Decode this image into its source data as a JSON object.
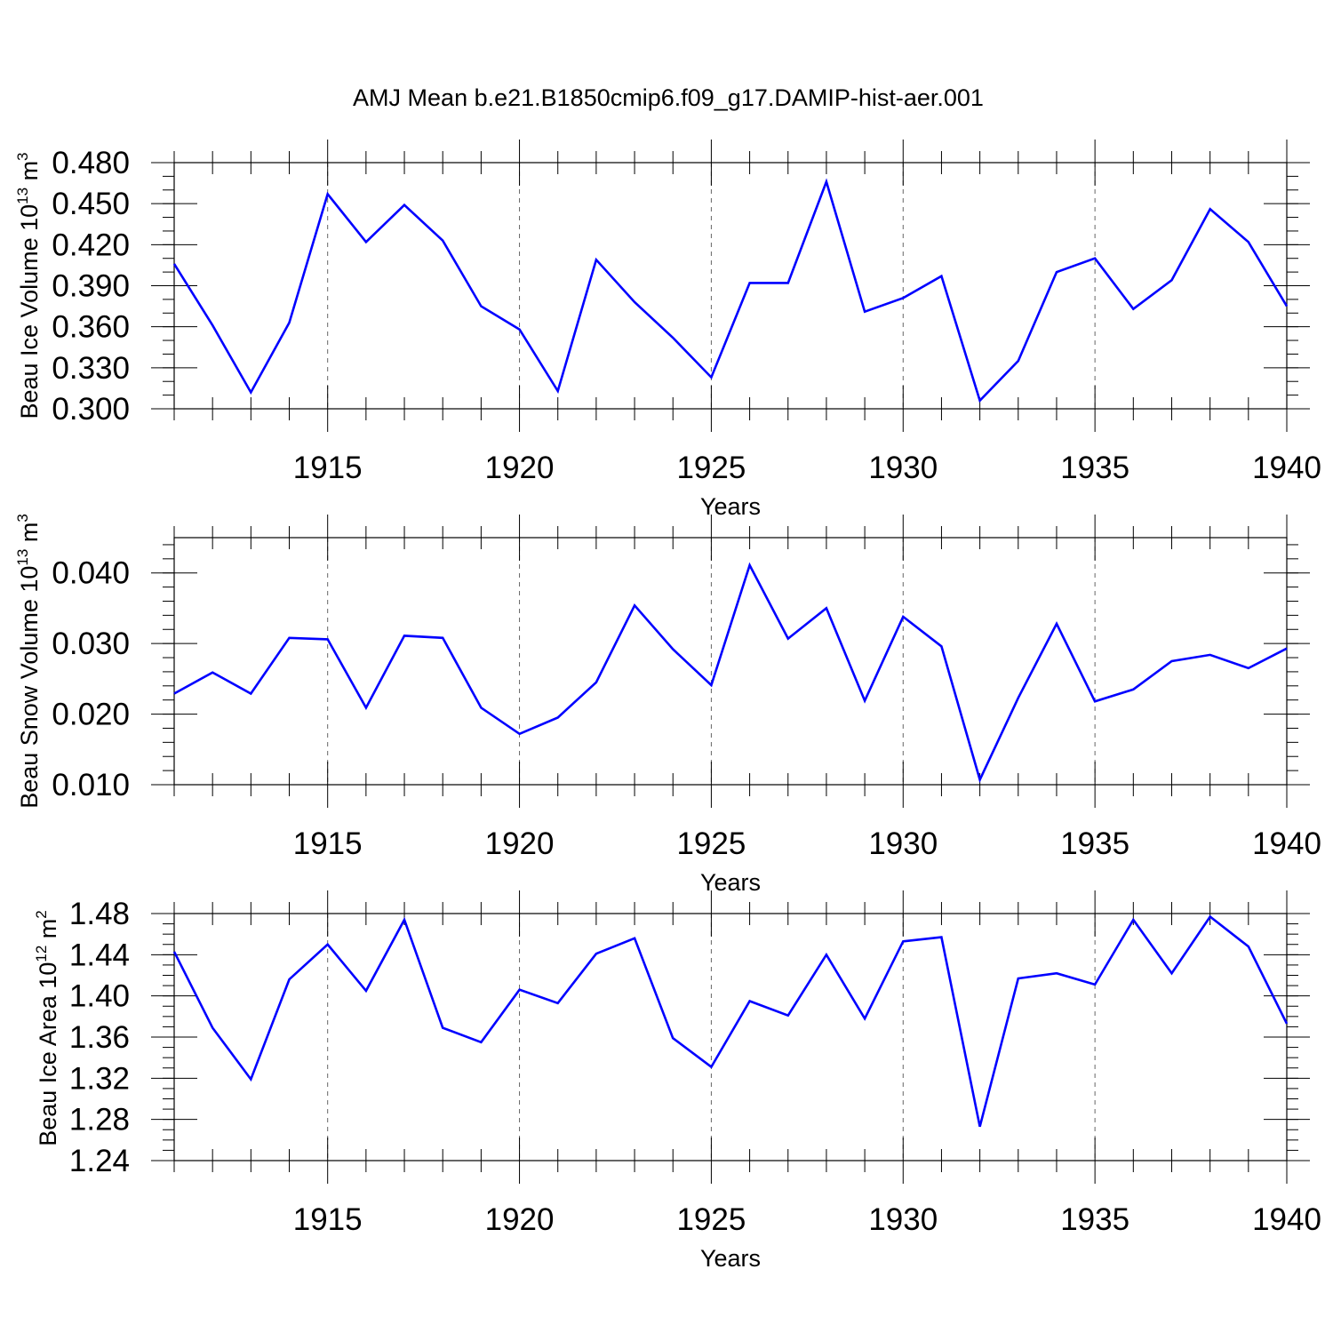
{
  "title": "AMJ Mean b.e21.B1850cmip6.f09_g17.DAMIP-hist-aer.001",
  "chart_data": [
    {
      "type": "line",
      "name": "ice-volume",
      "ylabel": "Beau Ice Volume 10",
      "ylabel_exp": "13",
      "ylabel_unit": " m",
      "ylabel_unit_exp": "3",
      "xlabel": "Years",
      "xlim": [
        1911,
        1940
      ],
      "ylim": [
        0.3,
        0.48
      ],
      "yminor": 0.01,
      "ydecimals": 3,
      "xticks": [
        1915,
        1920,
        1925,
        1930,
        1935,
        1940
      ],
      "yticks": [
        0.3,
        0.33,
        0.36,
        0.39,
        0.42,
        0.45,
        0.48
      ],
      "xtick_labels": [
        "1915",
        "1920",
        "1925",
        "1930",
        "1935",
        "1940"
      ],
      "ytick_labels": [
        "0.300",
        "0.330",
        "0.360",
        "0.390",
        "0.420",
        "0.450",
        "0.480"
      ],
      "color": "#0000ff",
      "x": [
        1911,
        1912,
        1913,
        1914,
        1915,
        1916,
        1917,
        1918,
        1919,
        1920,
        1921,
        1922,
        1923,
        1924,
        1925,
        1926,
        1927,
        1928,
        1929,
        1930,
        1931,
        1932,
        1933,
        1934,
        1935,
        1936,
        1937,
        1938,
        1939,
        1940
      ],
      "values": [
        0.406,
        0.361,
        0.312,
        0.363,
        0.457,
        0.422,
        0.449,
        0.423,
        0.375,
        0.358,
        0.313,
        0.409,
        0.378,
        0.352,
        0.323,
        0.392,
        0.392,
        0.466,
        0.371,
        0.381,
        0.397,
        0.306,
        0.335,
        0.4,
        0.41,
        0.373,
        0.394,
        0.446,
        0.422,
        0.375
      ]
    },
    {
      "type": "line",
      "name": "snow-volume",
      "ylabel": "Beau Snow Volume 10",
      "ylabel_exp": "13",
      "ylabel_unit": " m",
      "ylabel_unit_exp": "3",
      "xlabel": "Years",
      "xlim": [
        1911,
        1940
      ],
      "ylim": [
        0.01,
        0.045
      ],
      "yminor": 0.002,
      "ydecimals": 3,
      "xticks": [
        1915,
        1920,
        1925,
        1930,
        1935,
        1940
      ],
      "yticks": [
        0.01,
        0.02,
        0.03,
        0.04
      ],
      "xtick_labels": [
        "1915",
        "1920",
        "1925",
        "1930",
        "1935",
        "1940"
      ],
      "ytick_labels": [
        "0.010",
        "0.020",
        "0.030",
        "0.040"
      ],
      "color": "#0000ff",
      "x": [
        1911,
        1912,
        1913,
        1914,
        1915,
        1916,
        1917,
        1918,
        1919,
        1920,
        1921,
        1922,
        1923,
        1924,
        1925,
        1926,
        1927,
        1928,
        1929,
        1930,
        1931,
        1932,
        1933,
        1934,
        1935,
        1936,
        1937,
        1938,
        1939,
        1940
      ],
      "values": [
        0.0229,
        0.0259,
        0.0229,
        0.0308,
        0.0306,
        0.0209,
        0.0311,
        0.0308,
        0.0209,
        0.0172,
        0.0195,
        0.0245,
        0.0354,
        0.0292,
        0.0241,
        0.0411,
        0.0307,
        0.035,
        0.0219,
        0.0338,
        0.0296,
        0.0107,
        0.0223,
        0.0328,
        0.0218,
        0.0235,
        0.0275,
        0.0284,
        0.0265,
        0.0293
      ]
    },
    {
      "type": "line",
      "name": "ice-area",
      "ylabel": "Beau Ice Area 10",
      "ylabel_exp": "12",
      "ylabel_unit": " m",
      "ylabel_unit_exp": "2",
      "xlabel": "Years",
      "xlim": [
        1911,
        1940
      ],
      "ylim": [
        1.24,
        1.48
      ],
      "yminor": 0.01,
      "ydecimals": 2,
      "xticks": [
        1915,
        1920,
        1925,
        1930,
        1935,
        1940
      ],
      "yticks": [
        1.24,
        1.28,
        1.32,
        1.36,
        1.4,
        1.44,
        1.48
      ],
      "xtick_labels": [
        "1915",
        "1920",
        "1925",
        "1930",
        "1935",
        "1940"
      ],
      "ytick_labels": [
        "1.24",
        "1.28",
        "1.32",
        "1.36",
        "1.40",
        "1.44",
        "1.48"
      ],
      "color": "#0000ff",
      "x": [
        1911,
        1912,
        1913,
        1914,
        1915,
        1916,
        1917,
        1918,
        1919,
        1920,
        1921,
        1922,
        1923,
        1924,
        1925,
        1926,
        1927,
        1928,
        1929,
        1930,
        1931,
        1932,
        1933,
        1934,
        1935,
        1936,
        1937,
        1938,
        1939,
        1940
      ],
      "values": [
        1.443,
        1.369,
        1.319,
        1.416,
        1.45,
        1.405,
        1.474,
        1.369,
        1.355,
        1.406,
        1.393,
        1.441,
        1.456,
        1.359,
        1.331,
        1.395,
        1.381,
        1.44,
        1.378,
        1.453,
        1.457,
        1.273,
        1.417,
        1.422,
        1.411,
        1.474,
        1.422,
        1.477,
        1.448,
        1.373
      ]
    }
  ]
}
